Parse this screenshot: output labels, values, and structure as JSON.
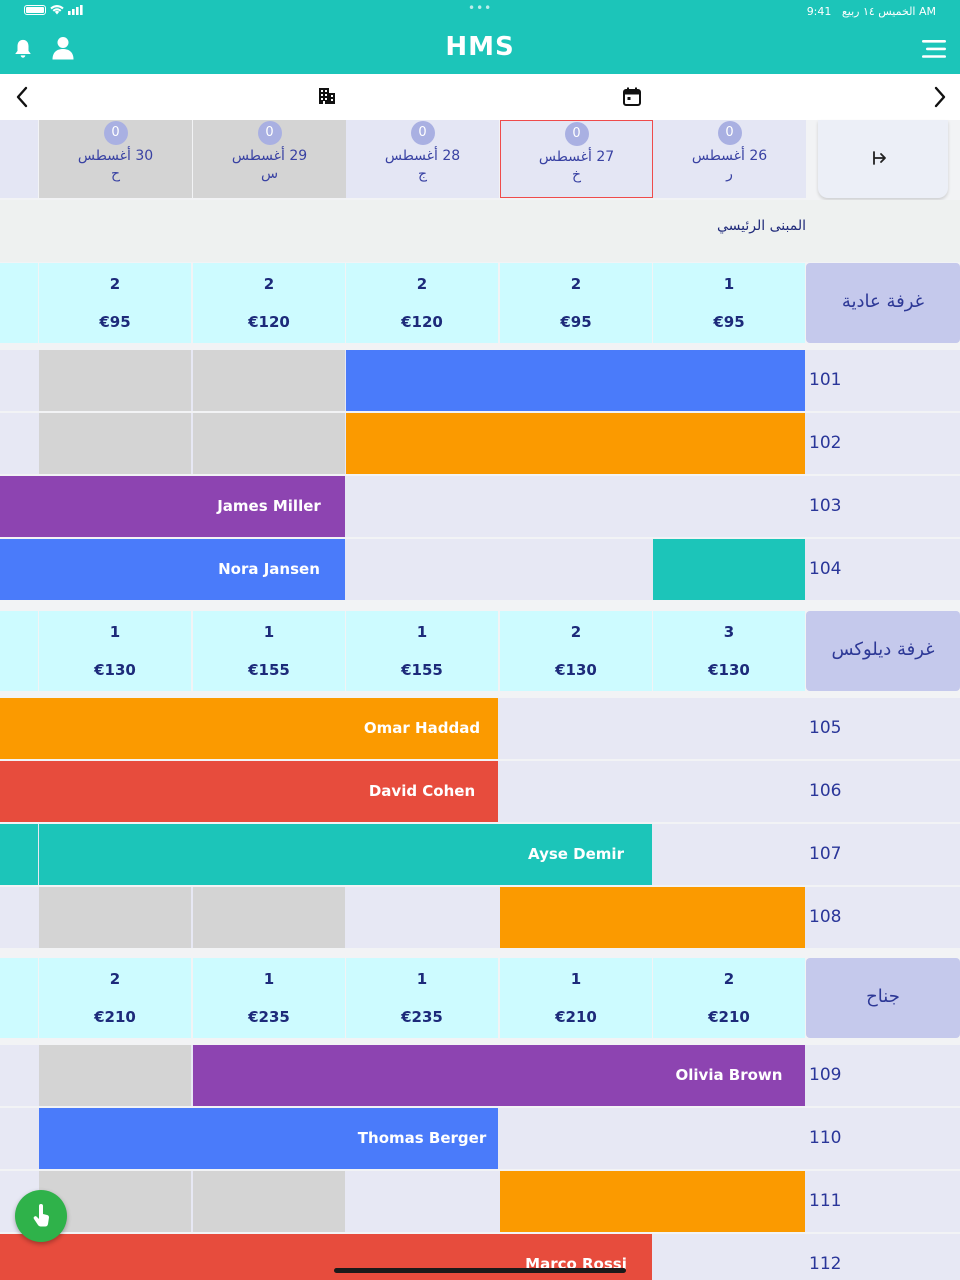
{
  "status_bar": {
    "time": "9:41 AM",
    "date": "الخميس ١٤ ربيع"
  },
  "app": {
    "title": "HMS"
  },
  "icons": {
    "bell": "bell-icon",
    "user": "user-icon",
    "menu": "menu-icon",
    "back": "chevron-left-icon",
    "forward": "chevron-right-icon",
    "building": "building-icon",
    "calendar": "calendar-icon",
    "collapse": "arrow-right-to-line-icon",
    "fab": "touch-hand-icon"
  },
  "colors": {
    "header": "#1cc5b9",
    "blue": "#4a7bfa",
    "orange": "#fb9a00",
    "purple": "#8d44b1",
    "red": "#e74c3d",
    "teal": "#1cc5b9"
  },
  "dates": [
    {
      "count": "0",
      "label": "30 أغسطس",
      "weekday": "ح",
      "past": true
    },
    {
      "count": "0",
      "label": "29 أغسطس",
      "weekday": "س",
      "past": true
    },
    {
      "count": "0",
      "label": "28 أغسطس",
      "weekday": "ج",
      "past": false
    },
    {
      "count": "0",
      "label": "27 أغسطس",
      "weekday": "خ",
      "past": false,
      "selected": true
    },
    {
      "count": "0",
      "label": "26 أغسطس",
      "weekday": "ر",
      "past": false
    }
  ],
  "building": {
    "name": "المبنى الرئيسي"
  },
  "sections": [
    {
      "type": "غرفة عادية",
      "prices": [
        {
          "count": "2",
          "price": "€95"
        },
        {
          "count": "2",
          "price": "€120"
        },
        {
          "count": "2",
          "price": "€120"
        },
        {
          "count": "2",
          "price": "€95"
        },
        {
          "count": "1",
          "price": "€95"
        }
      ],
      "rooms": [
        {
          "number": "101",
          "bookings": [
            {
              "from": 2,
              "to": 4,
              "color": "blue",
              "guest": ""
            }
          ]
        },
        {
          "number": "102",
          "bookings": [
            {
              "from": 2,
              "to": 4,
              "color": "orange",
              "guest": ""
            }
          ]
        },
        {
          "number": "103",
          "bookings": [
            {
              "from": -1,
              "to": 1,
              "color": "purple",
              "guest": "James Miller"
            }
          ]
        },
        {
          "number": "104",
          "bookings": [
            {
              "from": -1,
              "to": 1,
              "color": "blue",
              "guest": "Nora Jansen"
            },
            {
              "from": 4,
              "to": 4,
              "color": "teal",
              "guest": ""
            }
          ]
        }
      ]
    },
    {
      "type": "غرفة ديلوكس",
      "prices": [
        {
          "count": "1",
          "price": "€130"
        },
        {
          "count": "1",
          "price": "€155"
        },
        {
          "count": "1",
          "price": "€155"
        },
        {
          "count": "2",
          "price": "€130"
        },
        {
          "count": "3",
          "price": "€130"
        }
      ],
      "rooms": [
        {
          "number": "105",
          "bookings": [
            {
              "from": -1,
              "to": 2,
              "color": "orange",
              "guest": "Omar Haddad"
            }
          ]
        },
        {
          "number": "106",
          "bookings": [
            {
              "from": -1,
              "to": 2,
              "color": "red",
              "guest": "David Cohen"
            }
          ]
        },
        {
          "number": "107",
          "bookings": [
            {
              "from": -1,
              "to": -1,
              "color": "teal",
              "guest": ""
            },
            {
              "from": 0,
              "to": 3,
              "color": "teal",
              "guest": "Ayse Demir"
            }
          ]
        },
        {
          "number": "108",
          "bookings": [
            {
              "from": 3,
              "to": 4,
              "color": "orange",
              "guest": ""
            }
          ]
        }
      ]
    },
    {
      "type": "جناح",
      "prices": [
        {
          "count": "2",
          "price": "€210"
        },
        {
          "count": "1",
          "price": "€235"
        },
        {
          "count": "1",
          "price": "€235"
        },
        {
          "count": "1",
          "price": "€210"
        },
        {
          "count": "2",
          "price": "€210"
        }
      ],
      "rooms": [
        {
          "number": "109",
          "bookings": [
            {
              "from": 1,
              "to": 4,
              "color": "purple",
              "guest": "Olivia Brown"
            }
          ]
        },
        {
          "number": "110",
          "bookings": [
            {
              "from": 0,
              "to": 2,
              "color": "blue",
              "guest": "Thomas Berger"
            }
          ]
        },
        {
          "number": "111",
          "bookings": [
            {
              "from": 3,
              "to": 4,
              "color": "orange",
              "guest": ""
            }
          ]
        },
        {
          "number": "112",
          "bookings": [
            {
              "from": -1,
              "to": 3,
              "color": "red",
              "guest": "Marco Rossi"
            }
          ]
        }
      ]
    }
  ]
}
